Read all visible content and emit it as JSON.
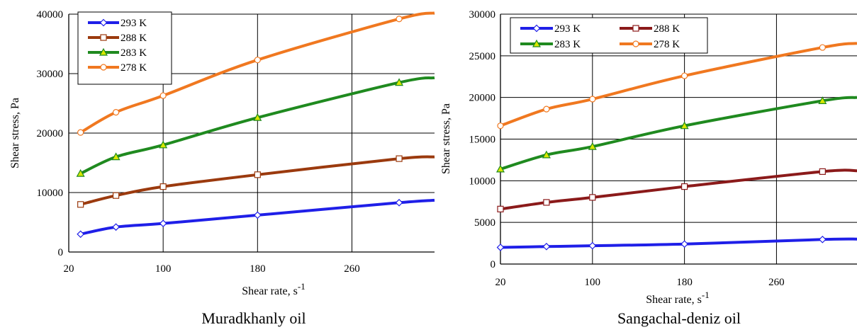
{
  "chart_data": [
    {
      "type": "line",
      "caption": "Muradkhanly oil",
      "xlabel": "Shear rate, s",
      "xlabel_sup": "-1",
      "ylabel": "Shear stress, Pa",
      "xlim": [
        20,
        330
      ],
      "ylim": [
        0,
        40000
      ],
      "xticks": [
        20,
        100,
        180,
        260
      ],
      "yticks": [
        0,
        10000,
        20000,
        30000,
        40000
      ],
      "grid": true,
      "legend_position": "top-left",
      "legend_columns": 1,
      "series": [
        {
          "name": "293 K",
          "color": "#1f1fe8",
          "marker": "diamond",
          "x": [
            30,
            60,
            100,
            180,
            300,
            330
          ],
          "y": [
            3000,
            4200,
            4800,
            6200,
            8300,
            8700
          ]
        },
        {
          "name": "288 K",
          "color": "#9b3a0e",
          "marker": "square",
          "x": [
            30,
            60,
            100,
            180,
            300,
            330
          ],
          "y": [
            8000,
            9500,
            11000,
            13000,
            15700,
            16000
          ]
        },
        {
          "name": "283 K",
          "color": "#1f8a1f",
          "marker": "triangle",
          "x": [
            30,
            60,
            100,
            180,
            300,
            330
          ],
          "y": [
            13200,
            16000,
            18000,
            22600,
            28500,
            29300
          ]
        },
        {
          "name": "278 K",
          "color": "#f07820",
          "marker": "circle",
          "x": [
            30,
            60,
            100,
            180,
            300,
            330
          ],
          "y": [
            20100,
            23500,
            26300,
            32300,
            39200,
            40200
          ]
        }
      ]
    },
    {
      "type": "line",
      "caption": "Sangachal-deniz oil",
      "xlabel": "Shear rate, s",
      "xlabel_sup": "-1",
      "ylabel": "Shear stress, Pa",
      "xlim": [
        20,
        330
      ],
      "ylim": [
        0,
        30000
      ],
      "xticks": [
        20,
        100,
        180,
        260
      ],
      "yticks": [
        0,
        5000,
        10000,
        15000,
        20000,
        25000,
        30000
      ],
      "grid": true,
      "legend_position": "top",
      "legend_columns": 2,
      "series": [
        {
          "name": "293 K",
          "color": "#1f1fe8",
          "marker": "diamond",
          "x": [
            20,
            60,
            100,
            180,
            300,
            330
          ],
          "y": [
            2000,
            2100,
            2200,
            2400,
            2950,
            3000
          ]
        },
        {
          "name": "288 K",
          "color": "#8b1a1a",
          "marker": "square",
          "x": [
            20,
            60,
            100,
            180,
            300,
            330
          ],
          "y": [
            6600,
            7400,
            8000,
            9300,
            11100,
            11200
          ]
        },
        {
          "name": "283 K",
          "color": "#1f8a1f",
          "marker": "triangle",
          "x": [
            20,
            60,
            100,
            180,
            300,
            330
          ],
          "y": [
            11400,
            13100,
            14100,
            16600,
            19600,
            20000
          ]
        },
        {
          "name": "278 K",
          "color": "#f07820",
          "marker": "circle",
          "x": [
            20,
            60,
            100,
            180,
            300,
            330
          ],
          "y": [
            16600,
            18600,
            19800,
            22600,
            26000,
            26500
          ]
        }
      ]
    }
  ]
}
